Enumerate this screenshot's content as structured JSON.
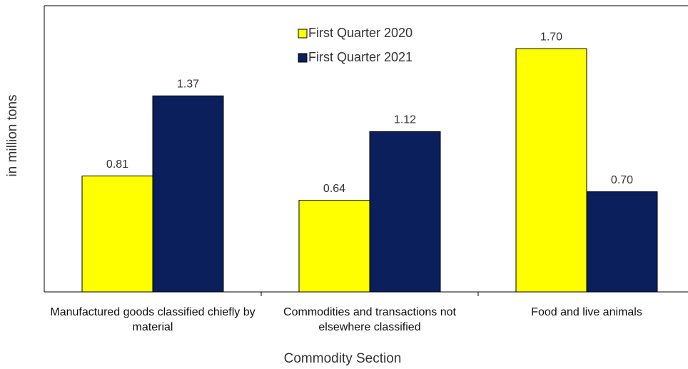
{
  "chart_data": {
    "type": "bar",
    "categories": [
      "Manufactured goods classified chiefly by material",
      "Commodities and transactions not elsewhere classified",
      "Food and live animals"
    ],
    "series": [
      {
        "name": "First Quarter 2020",
        "color": "#ffff00",
        "values": [
          0.81,
          0.64,
          1.7
        ],
        "value_labels": [
          "0.81",
          "0.64",
          "1.70"
        ]
      },
      {
        "name": "First Quarter 2021",
        "color": "#0a1f5c",
        "values": [
          1.37,
          1.12,
          0.7
        ],
        "value_labels": [
          "1.37",
          "1.12",
          "0.70"
        ]
      }
    ],
    "ylim": [
      0,
      2
    ],
    "y_label": "in million tons",
    "x_label": "Commodity Section",
    "legend": "top"
  }
}
